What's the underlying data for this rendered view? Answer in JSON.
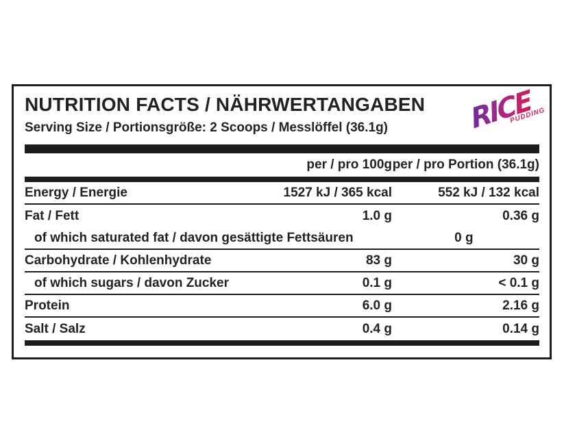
{
  "label": {
    "title": "NUTRITION FACTS / NÄHRWERTANGABEN",
    "serving_line": "Serving Size / Portionsgröße: 2 Scoops / Messlöffel (36.1g)",
    "logo": {
      "text": "RICE",
      "subtext": "PUDDING",
      "gradient_start": "#5f2d91",
      "gradient_end": "#d31f4e"
    },
    "columns": {
      "per100": "per / pro 100g",
      "portion": "per / pro Portion (36.1g)"
    },
    "rows": [
      {
        "name": "Energy / Energie",
        "per100": "1527 kJ / 365 kcal",
        "portion": "552 kJ / 132 kcal"
      },
      {
        "name": "Fat / Fett",
        "per100": "1.0 g",
        "portion": "0.36 g"
      },
      {
        "name": "of which saturated fat / davon gesättigte Fettsäuren",
        "per100": "0 g",
        "portion": "0 g"
      },
      {
        "name": "Carbohydrate / Kohlenhydrate",
        "per100": "83 g",
        "portion": "30 g"
      },
      {
        "name": "of which sugars / davon Zucker",
        "per100": "0.1 g",
        "portion": "< 0.1 g"
      },
      {
        "name": "Protein",
        "per100": "6.0 g",
        "portion": "2.16 g"
      },
      {
        "name": "Salt / Salz",
        "per100": "0.4 g",
        "portion": "0.14 g"
      }
    ],
    "border_color": "#1c1c1c",
    "text_color": "#222222"
  }
}
